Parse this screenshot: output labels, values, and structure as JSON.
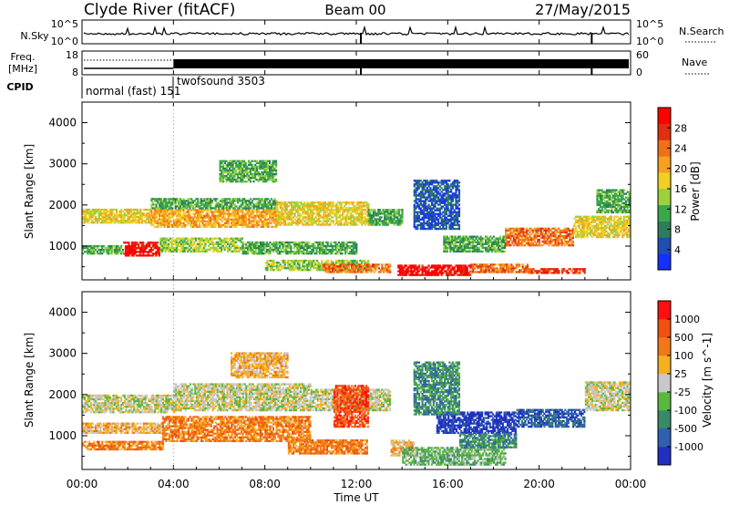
{
  "header": {
    "station": "Clyde River (fitACF)",
    "beam": "Beam 00",
    "date": "27/May/2015"
  },
  "time_axis": {
    "xlabel": "Time UT",
    "ticks": [
      "00:00",
      "04:00",
      "08:00",
      "12:00",
      "16:00",
      "20:00",
      "00:00"
    ],
    "range_hours": [
      0,
      24
    ]
  },
  "nsky_panel": {
    "left_label": "N.Sky",
    "left_ticks": [
      "10^5",
      "10^0"
    ],
    "right_label": "N.Search",
    "right_ticks": [
      "10^5",
      "10^0"
    ]
  },
  "freq_panel": {
    "left_label_line1": "Freq.",
    "left_label_line2": "[MHz]",
    "left_ticks": [
      "18",
      "8"
    ],
    "right_label": "Nave",
    "right_ticks": [
      "60",
      "0"
    ]
  },
  "cpid_panel": {
    "label": "CPID",
    "modes": [
      {
        "text": "normal (fast) 151",
        "start_hour": 0.0
      },
      {
        "text": "twofsound 3503",
        "start_hour": 4.0
      }
    ]
  },
  "chart_data": [
    {
      "type": "heatmap",
      "title": "",
      "xlabel": "Time UT",
      "ylabel": "Slant Range [km]",
      "xlim_hours": [
        0,
        24
      ],
      "ylim": [
        180,
        4500
      ],
      "yticks": [
        1000,
        2000,
        3000,
        4000
      ],
      "colorbar": {
        "label": "Power [dB]",
        "ticks": [
          "4",
          "8",
          "12",
          "16",
          "20",
          "24",
          "28"
        ],
        "colors": [
          "#1530ff",
          "#1f4fb0",
          "#2e7d5a",
          "#3aa84a",
          "#9bd23c",
          "#f0d020",
          "#f5a020",
          "#f07018",
          "#e03010",
          "#ff0000"
        ]
      },
      "regions": [
        {
          "t0": 0.0,
          "t1": 1.8,
          "r0": 800,
          "r1": 1000,
          "level": 3
        },
        {
          "t0": 1.8,
          "t1": 3.4,
          "r0": 750,
          "r1": 1100,
          "level": 9
        },
        {
          "t0": 3.4,
          "t1": 7.0,
          "r0": 850,
          "r1": 1200,
          "level": 4
        },
        {
          "t0": 7.0,
          "t1": 12.0,
          "r0": 800,
          "r1": 1100,
          "level": 3
        },
        {
          "t0": 0.0,
          "t1": 3.0,
          "r0": 1550,
          "r1": 1900,
          "level": 5
        },
        {
          "t0": 3.0,
          "t1": 8.5,
          "r0": 1450,
          "r1": 1900,
          "level": 6
        },
        {
          "t0": 3.0,
          "t1": 8.5,
          "r0": 1900,
          "r1": 2150,
          "level": 3
        },
        {
          "t0": 8.5,
          "t1": 12.5,
          "r0": 1500,
          "r1": 2050,
          "level": 5
        },
        {
          "t0": 12.5,
          "t1": 14.0,
          "r0": 1500,
          "r1": 1900,
          "level": 3
        },
        {
          "t0": 6.0,
          "t1": 8.5,
          "r0": 2550,
          "r1": 3050,
          "level": 3
        },
        {
          "t0": 8.0,
          "t1": 12.5,
          "r0": 400,
          "r1": 650,
          "level": 4
        },
        {
          "t0": 10.5,
          "t1": 13.5,
          "r0": 350,
          "r1": 550,
          "level": 7
        },
        {
          "t0": 13.8,
          "t1": 17.0,
          "r0": 280,
          "r1": 550,
          "level": 9
        },
        {
          "t0": 17.0,
          "t1": 19.5,
          "r0": 350,
          "r1": 550,
          "level": 7
        },
        {
          "t0": 19.5,
          "t1": 22.0,
          "r0": 330,
          "r1": 430,
          "level": 8
        },
        {
          "t0": 15.8,
          "t1": 18.5,
          "r0": 850,
          "r1": 1250,
          "level": 3
        },
        {
          "t0": 18.5,
          "t1": 21.5,
          "r0": 1000,
          "r1": 1450,
          "level": 7
        },
        {
          "t0": 21.5,
          "t1": 24.0,
          "r0": 1200,
          "r1": 1700,
          "level": 5
        },
        {
          "t0": 22.5,
          "t1": 24.0,
          "r0": 1800,
          "r1": 2350,
          "level": 3
        },
        {
          "t0": 14.5,
          "t1": 16.5,
          "r0": 1400,
          "r1": 2600,
          "level": 1
        }
      ]
    },
    {
      "type": "heatmap",
      "title": "",
      "xlabel": "Time UT",
      "ylabel": "Slant Range [km]",
      "xlim_hours": [
        0,
        24
      ],
      "ylim": [
        180,
        4500
      ],
      "yticks": [
        1000,
        2000,
        3000,
        4000
      ],
      "colorbar": {
        "label": "Velocity [m s^-1]",
        "ticks": [
          "1000",
          "500",
          "100",
          "25",
          "-25",
          "-100",
          "-500",
          "-1000"
        ],
        "colors": [
          "#2030c0",
          "#3060b0",
          "#3a8a6a",
          "#5ab840",
          "#c8c8c8",
          "#f5b020",
          "#f07818",
          "#f05010",
          "#ff1010"
        ]
      },
      "regions": [
        {
          "t0": 0.0,
          "t1": 3.5,
          "r0": 650,
          "r1": 850,
          "level": 6
        },
        {
          "t0": 0.0,
          "t1": 3.5,
          "r0": 1050,
          "r1": 1300,
          "level": 5
        },
        {
          "t0": 3.5,
          "t1": 10.0,
          "r0": 850,
          "r1": 1450,
          "level": 6
        },
        {
          "t0": 9.0,
          "t1": 12.5,
          "r0": 550,
          "r1": 900,
          "level": 6
        },
        {
          "t0": 0.0,
          "t1": 4.0,
          "r0": 1550,
          "r1": 2000,
          "level": 4
        },
        {
          "t0": 4.0,
          "t1": 10.0,
          "r0": 1600,
          "r1": 2250,
          "level": 4
        },
        {
          "t0": 10.0,
          "t1": 13.5,
          "r0": 1600,
          "r1": 2100,
          "level": 4
        },
        {
          "t0": 6.5,
          "t1": 9.0,
          "r0": 2400,
          "r1": 3000,
          "level": 5
        },
        {
          "t0": 11.0,
          "t1": 12.5,
          "r0": 1200,
          "r1": 2200,
          "level": 7
        },
        {
          "t0": 13.5,
          "t1": 14.5,
          "r0": 500,
          "r1": 900,
          "level": 5
        },
        {
          "t0": 14.0,
          "t1": 18.5,
          "r0": 280,
          "r1": 700,
          "level": 3
        },
        {
          "t0": 15.5,
          "t1": 19.0,
          "r0": 1050,
          "r1": 1550,
          "level": 0
        },
        {
          "t0": 19.0,
          "t1": 22.0,
          "r0": 1200,
          "r1": 1650,
          "level": 1
        },
        {
          "t0": 16.5,
          "t1": 19.0,
          "r0": 700,
          "r1": 1050,
          "level": 2
        },
        {
          "t0": 22.0,
          "t1": 24.0,
          "r0": 1600,
          "r1": 2300,
          "level": 4
        },
        {
          "t0": 14.5,
          "t1": 16.5,
          "r0": 1500,
          "r1": 2800,
          "level": 2
        }
      ]
    }
  ]
}
